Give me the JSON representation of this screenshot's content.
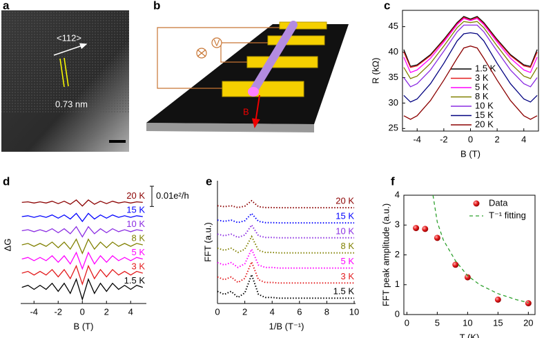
{
  "panel_a": {
    "label": "a",
    "direction": "<112>",
    "spacing": "0.73 nm"
  },
  "panel_b": {
    "label": "b",
    "field": "B",
    "voltmeter": "V"
  },
  "chart_data": [
    {
      "type": "line",
      "label": "c",
      "xlabel": "B (T)",
      "ylabel": "R (kΩ)",
      "x": [
        -5,
        -4.5,
        -4,
        -3,
        -2,
        -1,
        -0.5,
        0,
        0.5,
        1,
        2,
        3,
        4,
        4.5,
        5
      ],
      "xlim": [
        -5.1,
        5.1
      ],
      "xticks": [
        -4,
        -2,
        0,
        2,
        4
      ],
      "ylim": [
        24.5,
        48.2
      ],
      "yticks": [
        25,
        30,
        35,
        40,
        45
      ],
      "legend": "center left",
      "series": [
        {
          "name": "1.5 K",
          "color": "#000000",
          "values": [
            40.5,
            37.2,
            37.5,
            39.5,
            42.5,
            45.8,
            47,
            46.5,
            47,
            45.8,
            42.5,
            39.5,
            37.5,
            37.2,
            40.5
          ]
        },
        {
          "name": "3 K",
          "color": "#e31a1c",
          "values": [
            40,
            37,
            37.3,
            39.3,
            42.3,
            45.6,
            46.8,
            46.3,
            46.8,
            45.6,
            42.3,
            39.3,
            37.3,
            37,
            40
          ]
        },
        {
          "name": "5 K",
          "color": "#ff00ff",
          "values": [
            39,
            36,
            36.5,
            38.8,
            42,
            45.4,
            46.6,
            46.2,
            46.6,
            45.4,
            42,
            38.8,
            36.5,
            36,
            39
          ]
        },
        {
          "name": "8 K",
          "color": "#808000",
          "values": [
            37,
            34.8,
            35.3,
            37.8,
            41.2,
            44.8,
            46,
            45.8,
            46,
            44.8,
            41.2,
            37.8,
            35.3,
            34.8,
            37
          ]
        },
        {
          "name": "10 K",
          "color": "#8a2be2",
          "values": [
            35,
            33.2,
            33.8,
            36.5,
            40.2,
            44,
            45.3,
            45.3,
            45.3,
            44,
            40.2,
            36.5,
            33.8,
            33.2,
            35
          ]
        },
        {
          "name": "15 K",
          "color": "#000080",
          "values": [
            31.5,
            30.2,
            30.8,
            33.8,
            37.8,
            42.2,
            43.6,
            43.8,
            43.6,
            42.2,
            37.8,
            33.8,
            30.8,
            30.2,
            31.5
          ]
        },
        {
          "name": "20 K",
          "color": "#8b0000",
          "values": [
            27.5,
            26.8,
            27.5,
            30.5,
            34.5,
            38.8,
            40.8,
            41.2,
            40.8,
            38.8,
            34.5,
            30.5,
            27.5,
            26.8,
            27.5
          ]
        }
      ]
    },
    {
      "type": "line",
      "label": "d",
      "xlabel": "B (T)",
      "ylabel": "ΔG",
      "x": [
        -5,
        -4.5,
        -4,
        -3.5,
        -3,
        -2.5,
        -2,
        -1.5,
        -1,
        -0.5,
        0,
        0.5,
        1,
        1.5,
        2,
        2.5,
        3,
        3.5,
        4,
        4.5,
        5
      ],
      "xlim": [
        -5.1,
        5.3
      ],
      "xticks": [
        -4,
        -2,
        0,
        2,
        4
      ],
      "ylim": [
        -0.008,
        0.05
      ],
      "legend": "inline",
      "scale_bar": {
        "value": 0.01,
        "label": "0.01e²/h"
      },
      "series": [
        {
          "name": "1.5 K",
          "color": "#000000",
          "values": [
            0,
            0.001,
            -0.001,
            0.001,
            -0.001,
            0.002,
            -0.002,
            0.002,
            -0.003,
            0.004,
            -0.006,
            0.004,
            -0.003,
            0.002,
            -0.002,
            0.002,
            -0.001,
            0.001,
            -0.001,
            0.001,
            0
          ]
        },
        {
          "name": "3 K",
          "color": "#e31a1c",
          "values": [
            0.007,
            0.0079,
            0.0061,
            0.0079,
            0.0061,
            0.0088,
            0.0052,
            0.0088,
            0.0043,
            0.0106,
            0.0016,
            0.0106,
            0.0043,
            0.0088,
            0.0052,
            0.0088,
            0.0061,
            0.0079,
            0.0061,
            0.0079,
            0.007
          ]
        },
        {
          "name": "5 K",
          "color": "#ff00ff",
          "values": [
            0.014,
            0.0148,
            0.0132,
            0.0148,
            0.0132,
            0.0156,
            0.0124,
            0.0156,
            0.0116,
            0.0172,
            0.0092,
            0.0172,
            0.0116,
            0.0156,
            0.0124,
            0.0156,
            0.0132,
            0.0148,
            0.0132,
            0.0148,
            0.014
          ]
        },
        {
          "name": "8 K",
          "color": "#808000",
          "values": [
            0.021,
            0.0217,
            0.0203,
            0.0217,
            0.0203,
            0.0224,
            0.0196,
            0.0224,
            0.0189,
            0.0238,
            0.0168,
            0.0238,
            0.0189,
            0.0224,
            0.0196,
            0.0224,
            0.0203,
            0.0217,
            0.0203,
            0.0217,
            0.021
          ]
        },
        {
          "name": "10 K",
          "color": "#8a2be2",
          "values": [
            0.028,
            0.0285,
            0.0275,
            0.0285,
            0.0275,
            0.029,
            0.027,
            0.029,
            0.0265,
            0.03,
            0.025,
            0.03,
            0.0265,
            0.029,
            0.027,
            0.029,
            0.0275,
            0.0285,
            0.0275,
            0.0285,
            0.028
          ]
        },
        {
          "name": "15 K",
          "color": "#0000ff",
          "values": [
            0.035,
            0.0354,
            0.0346,
            0.0354,
            0.0346,
            0.0358,
            0.0342,
            0.0358,
            0.0338,
            0.0366,
            0.0326,
            0.0366,
            0.0338,
            0.0358,
            0.0342,
            0.0358,
            0.0346,
            0.0354,
            0.0346,
            0.0354,
            0.035
          ]
        },
        {
          "name": "20 K",
          "color": "#8b0000",
          "values": [
            0.042,
            0.0423,
            0.0417,
            0.0423,
            0.0417,
            0.0426,
            0.0414,
            0.0426,
            0.0411,
            0.0432,
            0.0402,
            0.0432,
            0.0411,
            0.0426,
            0.0414,
            0.0426,
            0.0417,
            0.0423,
            0.0417,
            0.0423,
            0.042
          ]
        }
      ]
    },
    {
      "type": "line",
      "label": "e",
      "xlabel": "1/B (T⁻¹)",
      "ylabel": "FFT (a.u.)",
      "x": [
        0,
        0.5,
        1,
        1.5,
        2,
        2.5,
        3,
        3.5,
        4,
        4.5,
        5,
        5.5,
        6,
        6.5,
        7,
        7.5,
        8,
        8.5,
        9,
        9.5,
        10
      ],
      "xlim": [
        0,
        10.1
      ],
      "xticks": [
        0,
        2,
        4,
        6,
        8,
        10
      ],
      "ylim": [
        -0.3,
        7.8
      ],
      "legend": "inline",
      "line": "dotted",
      "series": [
        {
          "name": "1.5 K",
          "color": "#000000",
          "values": [
            0.5,
            0.3,
            0.5,
            0.1,
            0.4,
            1.6,
            0.3,
            0.1,
            0.1,
            0.05,
            0.05,
            0.05,
            0.05,
            0.05,
            0.05,
            0.05,
            0.05,
            0.05,
            0.05,
            0.05,
            0.05
          ]
        },
        {
          "name": "3 K",
          "color": "#e31a1c",
          "values": [
            1.45,
            1.27,
            1.45,
            1.09,
            1.36,
            2.44,
            1.27,
            1.09,
            1.09,
            1.05,
            1.05,
            1.05,
            1.05,
            1.05,
            1.05,
            1.05,
            1.05,
            1.05,
            1.05,
            1.05,
            1.05
          ]
        },
        {
          "name": "5 K",
          "color": "#ff00ff",
          "values": [
            2.4,
            2.24,
            2.4,
            2.08,
            2.32,
            3.28,
            2.24,
            2.08,
            2.08,
            2.04,
            2.04,
            2.04,
            2.04,
            2.04,
            2.04,
            2.04,
            2.04,
            2.04,
            2.04,
            2.04,
            2.04
          ]
        },
        {
          "name": "8 K",
          "color": "#808000",
          "values": [
            3.35,
            3.21,
            3.35,
            3.07,
            3.28,
            4.12,
            3.21,
            3.07,
            3.07,
            3.04,
            3.04,
            3.04,
            3.04,
            3.04,
            3.04,
            3.04,
            3.04,
            3.04,
            3.04,
            3.04,
            3.04
          ]
        },
        {
          "name": "10 K",
          "color": "#8a2be2",
          "values": [
            4.28,
            4.17,
            4.28,
            4.06,
            4.22,
            4.88,
            4.17,
            4.06,
            4.06,
            4.03,
            4.03,
            4.03,
            4.03,
            4.03,
            4.03,
            4.03,
            4.03,
            4.03,
            4.03,
            4.03,
            4.03
          ]
        },
        {
          "name": "15 K",
          "color": "#0000ff",
          "values": [
            5.2,
            5.12,
            5.2,
            5.04,
            5.16,
            5.64,
            5.12,
            5.04,
            5.04,
            5.02,
            5.02,
            5.02,
            5.02,
            5.02,
            5.02,
            5.02,
            5.02,
            5.02,
            5.02,
            5.02,
            5.02
          ]
        },
        {
          "name": "20 K",
          "color": "#8b0000",
          "values": [
            6.15,
            6.09,
            6.15,
            6.03,
            6.12,
            6.48,
            6.09,
            6.03,
            6.03,
            6.02,
            6.02,
            6.02,
            6.02,
            6.02,
            6.02,
            6.02,
            6.02,
            6.02,
            6.02,
            6.02,
            6.02
          ]
        }
      ]
    },
    {
      "type": "scatter",
      "label": "f",
      "xlabel": "T (K)",
      "ylabel": "FFT peak amplitude (a.u.)",
      "xlim": [
        -0.5,
        21.1
      ],
      "xticks": [
        0,
        5,
        10,
        15,
        20
      ],
      "ylim": [
        0,
        4
      ],
      "yticks": [
        0,
        1,
        2,
        3,
        4
      ],
      "legend": "upper right",
      "series": [
        {
          "name": "Data",
          "color": "#e41a1c",
          "x": [
            1.5,
            3,
            5,
            8,
            10,
            15,
            20
          ],
          "values": [
            2.9,
            2.87,
            2.57,
            1.67,
            1.25,
            0.5,
            0.38
          ]
        },
        {
          "name": "T⁻¹ fitting",
          "color": "#2ca02c",
          "kind": "dashed-line",
          "x": [
            4.3,
            5,
            6,
            8,
            10,
            12,
            15,
            18,
            20
          ],
          "values": [
            4,
            3.1,
            2.5,
            1.8,
            1.3,
            1,
            0.7,
            0.5,
            0.4
          ]
        }
      ]
    }
  ]
}
